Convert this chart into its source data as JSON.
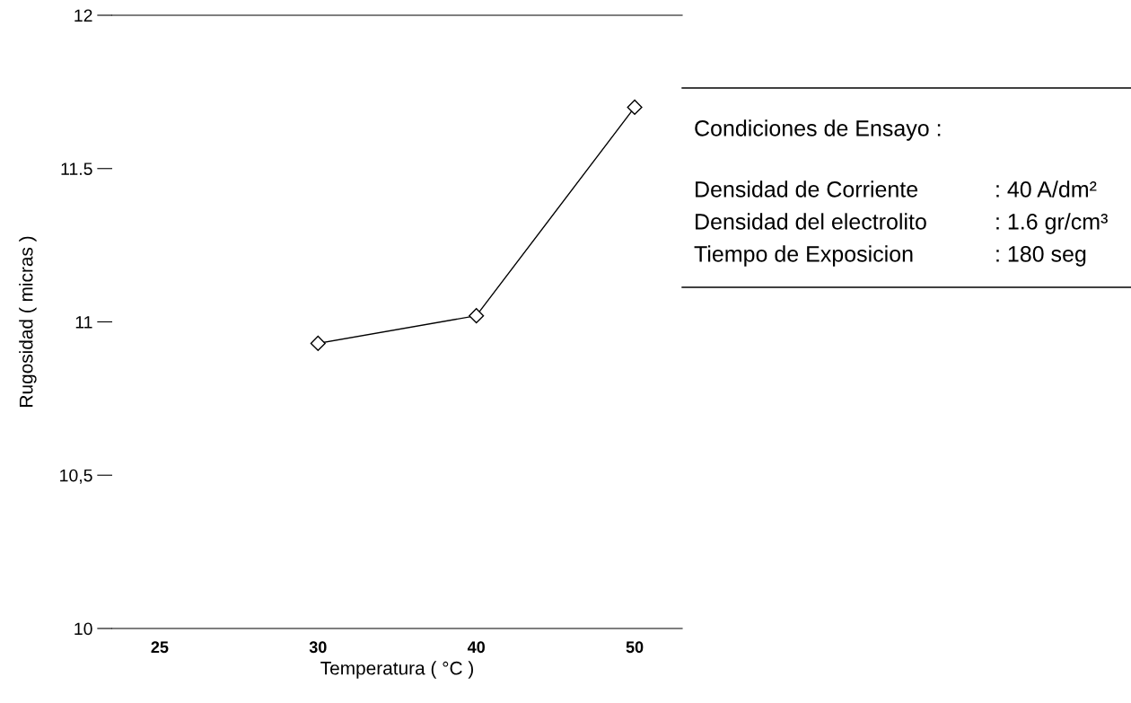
{
  "chart_data": {
    "type": "line",
    "xlabel": "Temperatura ( °C )",
    "ylabel": "Rugosidad ( micras )",
    "categories": [
      "25",
      "30",
      "40",
      "50"
    ],
    "series": [
      {
        "color": "#000000",
        "values": [
          null,
          10.93,
          11.02,
          11.7
        ]
      }
    ],
    "marker": "diamond",
    "line_style": "solid",
    "ylim": [
      10,
      12
    ],
    "yticks": [
      10,
      {
        "value": 10.5,
        "label": "10,5"
      },
      11,
      11.5,
      12
    ],
    "grid": false,
    "legend": false,
    "annotations": [
      "Condiciones de Ensayo :",
      "Densidad de Corriente",
      ": 40 A/dm²",
      "Densidad del electrolito",
      ": 1.6 gr/cm³",
      "Tiempo de Exposicion",
      ": 180 seg"
    ]
  }
}
